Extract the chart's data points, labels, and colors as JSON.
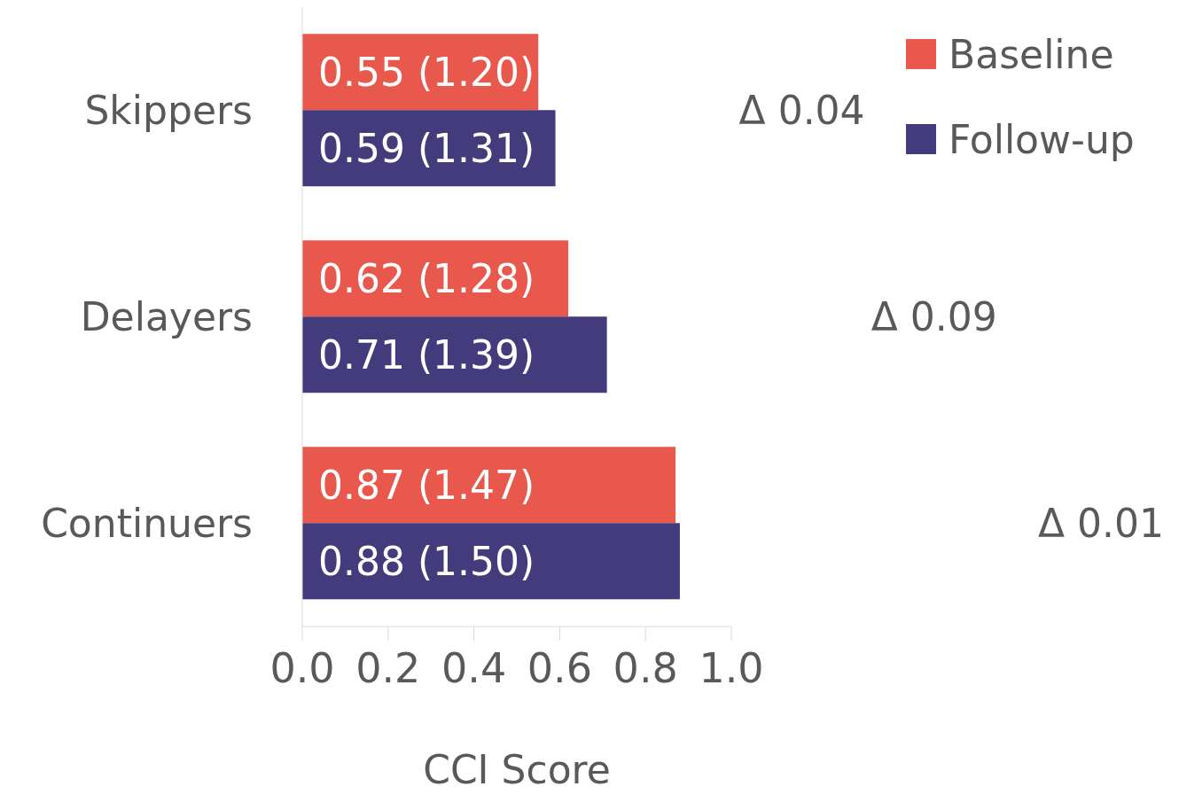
{
  "chart_data": {
    "type": "bar",
    "orientation": "horizontal",
    "xlabel": "CCI Score",
    "categories": [
      "Skippers",
      "Delayers",
      "Continuers"
    ],
    "series": [
      {
        "name": "Baseline",
        "color": "#e8584d",
        "values": [
          0.55,
          0.62,
          0.87
        ],
        "value_labels": [
          "0.55 (1.20)",
          "0.62 (1.28)",
          "0.87 (1.47)"
        ]
      },
      {
        "name": "Follow-up",
        "color": "#433b7c",
        "values": [
          0.59,
          0.71,
          0.88
        ],
        "value_labels": [
          "0.59 (1.31)",
          "0.71 (1.39)",
          "0.88 (1.50)"
        ]
      }
    ],
    "xlim": [
      0,
      1
    ],
    "xticks": [
      {
        "value": 0,
        "label": "0.0"
      },
      {
        "value": 0.2,
        "label": "0.2"
      },
      {
        "value": 0.4,
        "label": "0.4"
      },
      {
        "value": 0.6,
        "label": "0.6"
      },
      {
        "value": 0.8,
        "label": "0.8"
      },
      {
        "value": 1,
        "label": "1.0"
      }
    ],
    "annotations": [
      "Δ 0.04",
      "Δ 0.09",
      "Δ 0.01"
    ],
    "legend": "top right",
    "grid": false
  }
}
